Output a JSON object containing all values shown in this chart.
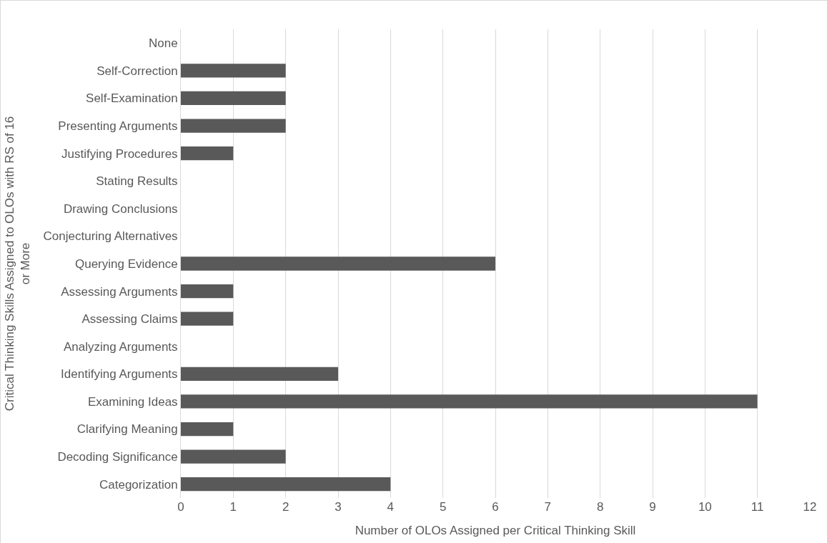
{
  "chart_data": {
    "type": "bar",
    "orientation": "horizontal",
    "xlabel": "Number of OLOs Assigned per Critical Thinking Skill",
    "ylabel": "Critical Thinking Skills Assigned to OLOs with RS of 16\nor More",
    "categories": [
      "None",
      "Self-Correction",
      "Self-Examination",
      "Presenting Arguments",
      "Justifying Procedures",
      "Stating Results",
      "Drawing Conclusions",
      "Conjecturing Alternatives",
      "Querying Evidence",
      "Assessing Arguments",
      "Assessing Claims",
      "Analyzing Arguments",
      "Identifying Arguments",
      "Examining Ideas",
      "Clarifying Meaning",
      "Decoding Significance",
      "Categorization"
    ],
    "values": [
      0,
      2,
      2,
      2,
      1,
      0,
      0,
      0,
      6,
      1,
      1,
      0,
      3,
      11,
      1,
      2,
      4
    ],
    "color": "#595959",
    "xlim": [
      0,
      12
    ],
    "xticks": [
      0,
      1,
      2,
      3,
      4,
      5,
      6,
      7,
      8,
      9,
      10,
      11,
      12
    ],
    "grid": "x",
    "legend": false
  }
}
